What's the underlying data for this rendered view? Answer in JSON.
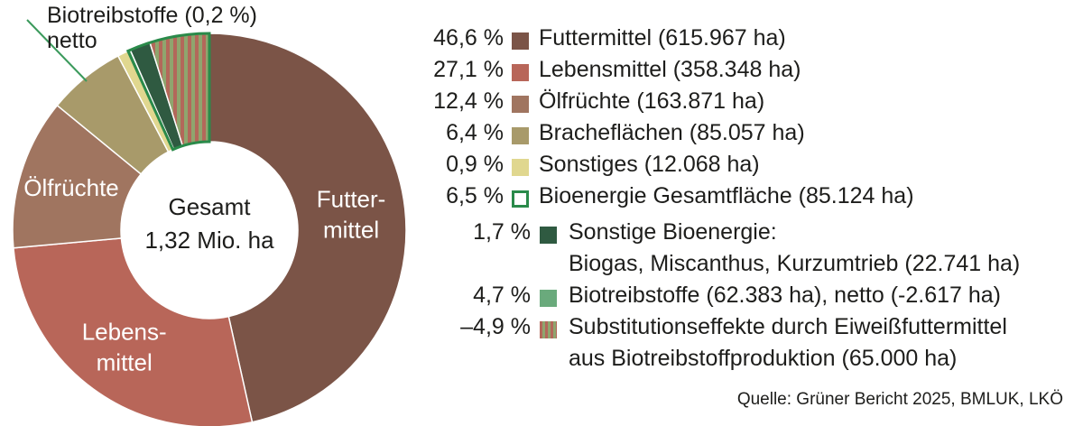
{
  "chart_data": {
    "type": "pie",
    "variant": "donut",
    "center_label": {
      "line1": "Gesamt",
      "line2": "1,32 Mio. ha"
    },
    "slices": [
      {
        "label": "Futtermittel",
        "chart_label": [
          "Futter-",
          "mittel"
        ],
        "value": 46.6,
        "color": "#7b5447"
      },
      {
        "label": "Lebensmittel",
        "chart_label": [
          "Lebens-",
          "mittel"
        ],
        "value": 27.1,
        "color": "#b86659"
      },
      {
        "label": "Ölfrüchte",
        "chart_label": [
          "Ölfrüchte"
        ],
        "value": 12.4,
        "color": "#a07560"
      },
      {
        "label": "Brachefächen",
        "chart_label": [],
        "value": 6.4,
        "color": "#a89a6a"
      },
      {
        "label": "Sonstiges",
        "chart_label": [],
        "value": 0.9,
        "color": "#e0d78f"
      },
      {
        "label": "Biotreibstoffe",
        "chart_label": [],
        "value": 0.2,
        "color": "#4fa06a"
      },
      {
        "label": "Sonstige Bioenergie",
        "chart_label": [],
        "value": 1.7,
        "color": "#2f5a41"
      },
      {
        "label": "Substitutionseffekte",
        "chart_label": [],
        "value": 4.9,
        "color": "#9a7a5c",
        "pattern": "stripes"
      }
    ],
    "callout": {
      "line1": "Biotreibstoffe (0,2 %)",
      "line2": "netto"
    },
    "legend": [
      {
        "pct": "46,6 %",
        "label": "Futtermittel (615.967 ha)",
        "color": "#7b5447",
        "style": "fill",
        "indent": false
      },
      {
        "pct": "27,1 %",
        "label": "Lebensmittel (358.348 ha)",
        "color": "#b86659",
        "style": "fill",
        "indent": false
      },
      {
        "pct": "12,4 %",
        "label": "Ölfrüchte (163.871 ha)",
        "color": "#a07560",
        "style": "fill",
        "indent": false
      },
      {
        "pct": "6,4 %",
        "label": "Bracheflächen (85.057 ha)",
        "color": "#a89a6a",
        "style": "fill",
        "indent": false
      },
      {
        "pct": "0,9 %",
        "label": "Sonstiges (12.068 ha)",
        "color": "#e0d78f",
        "style": "fill",
        "indent": false
      },
      {
        "pct": "6,5 %",
        "label": "Bioenergie Gesamtfläche (85.124 ha)",
        "color": "#2a8a4a",
        "style": "outline",
        "indent": false
      },
      {
        "pct": "1,7 %",
        "label": "Sonstige Bioenergie:",
        "label2": "Biogas, Miscanthus, Kurzumtrieb (22.741 ha)",
        "color": "#2f5a41",
        "style": "fill",
        "indent": true
      },
      {
        "pct": "4,7 %",
        "label": "Biotreibstoffe (62.383 ha), netto (-2.617 ha)",
        "color": "#6aaa7c",
        "style": "fill",
        "indent": true
      },
      {
        "pct": "–4,9 %",
        "label": "Substitutionseffekte durch Eiweißfuttermittel",
        "label2": "aus Biotreibstoffproduktion (65.000 ha)",
        "color": "#9a7a5c",
        "style": "stripes",
        "indent": true
      }
    ],
    "source": "Quelle: Grüner Bericht 2025, BMLUK, LKÖ"
  }
}
